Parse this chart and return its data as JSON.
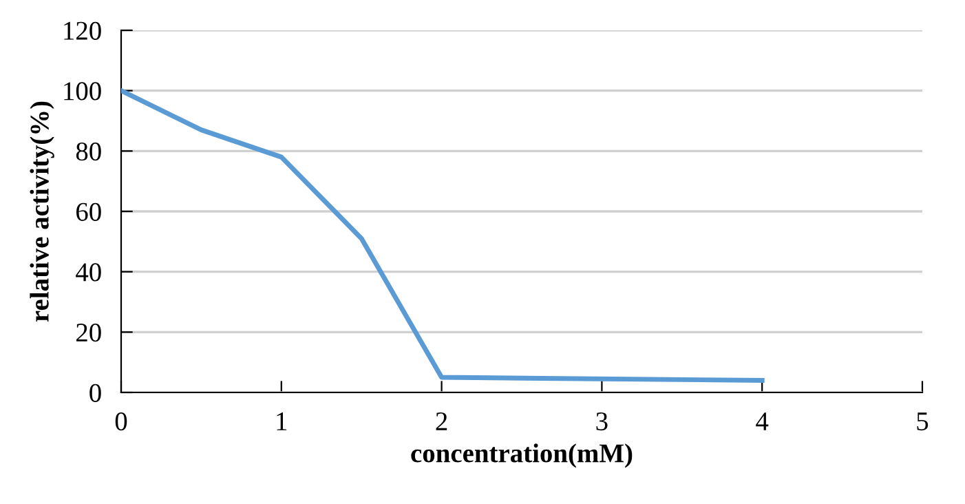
{
  "chart_data": {
    "type": "line",
    "xlabel": "concentration(mM)",
    "ylabel": "relative activity(%)",
    "series": [
      {
        "color": "#5b9bd5",
        "x": [
          0,
          0.5,
          1,
          1.5,
          2,
          4
        ],
        "values": [
          100,
          87,
          78,
          51,
          5,
          4
        ]
      }
    ],
    "xlim": [
      0,
      5
    ],
    "xticks": [
      0,
      1,
      2,
      3,
      4,
      5
    ],
    "ylim": [
      0,
      120
    ],
    "yticks": [
      0,
      20,
      40,
      60,
      80,
      100,
      120
    ],
    "grid": "y",
    "marker": "none",
    "line_style": "solid",
    "legend": false
  }
}
